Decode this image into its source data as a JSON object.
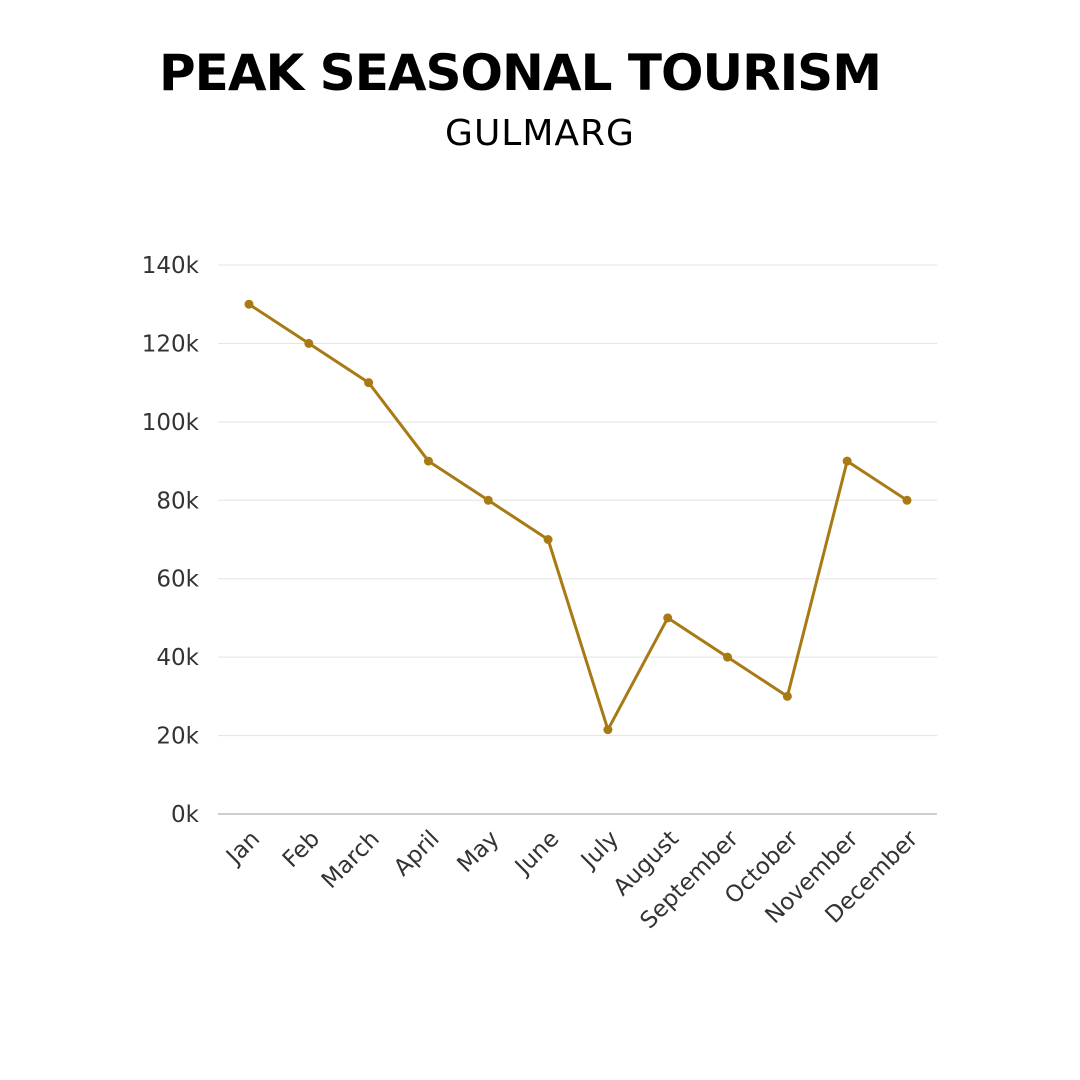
{
  "chart_data": {
    "type": "line",
    "title": "PEAK SEASONAL TOURISM",
    "subtitle": "GULMARG",
    "xlabel": "",
    "ylabel": "",
    "categories": [
      "Jan",
      "Feb",
      "March",
      "April",
      "May",
      "June",
      "July",
      "August",
      "September",
      "October",
      "November",
      "December"
    ],
    "series": [
      {
        "values": [
          130000,
          120000,
          110000,
          90000,
          80000,
          70000,
          21500,
          50000,
          40000,
          30000,
          90000,
          80000
        ]
      }
    ],
    "ylim": [
      0,
      140000
    ],
    "yticks": [
      0,
      20000,
      40000,
      60000,
      80000,
      100000,
      120000,
      140000
    ],
    "ytick_labels": [
      "0k",
      "20k",
      "40k",
      "60k",
      "80k",
      "100k",
      "120k",
      "140k"
    ],
    "grid": true,
    "legend": "none",
    "colors": {
      "line": "#A87A14",
      "grid": "#e3e3e3",
      "axis": "#bdbdbd"
    }
  }
}
